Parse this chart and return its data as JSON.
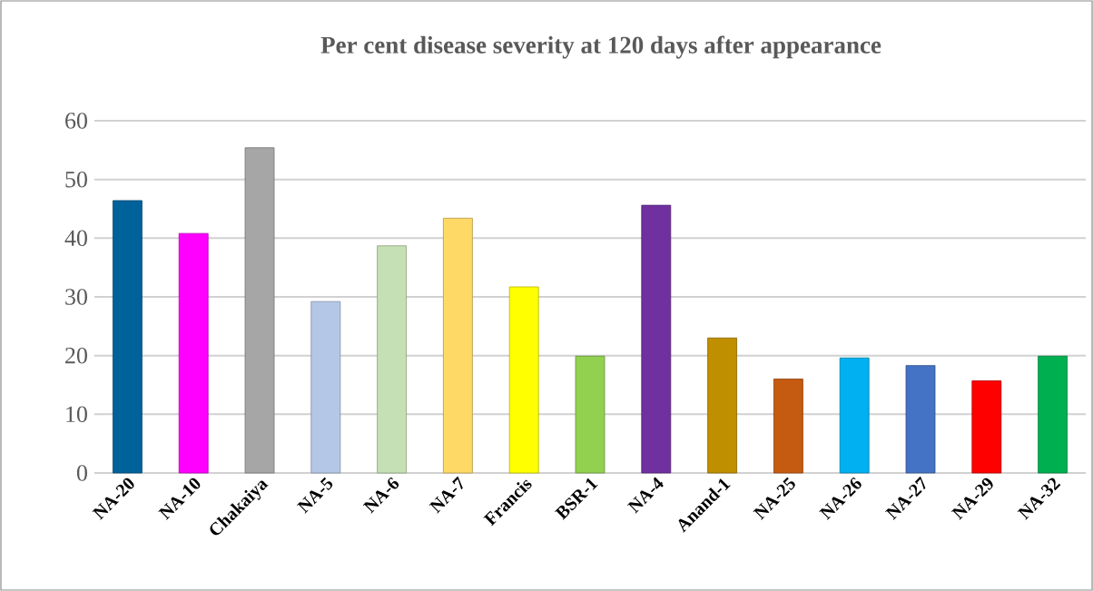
{
  "chart_data": {
    "type": "bar",
    "title": "Per cent disease severity at 120 days after appearance",
    "categories": [
      "NA-20",
      "NA-10",
      "Chakaiya",
      "NA-5",
      "NA-6",
      "NA-7",
      "Francis",
      "BSR-1",
      "NA-4",
      "Anand-1",
      "NA-25",
      "NA-26",
      "NA-27",
      "NA-29",
      "NA-32"
    ],
    "values": [
      46.4,
      40.8,
      55.4,
      29.2,
      38.7,
      43.4,
      31.7,
      19.9,
      45.6,
      23.0,
      16.0,
      19.6,
      18.3,
      15.7,
      19.9
    ],
    "colors": [
      "#00629b",
      "#ff00ff",
      "#a6a6a6",
      "#b4c7e7",
      "#c5e0b4",
      "#ffd966",
      "#ffff00",
      "#92d050",
      "#7030a0",
      "#bf8f00",
      "#c55a11",
      "#00b0f0",
      "#4472c4",
      "#ff0000",
      "#00b050"
    ],
    "ylim": [
      0,
      60
    ],
    "yticks": [
      0,
      10,
      20,
      30,
      40,
      50,
      60
    ],
    "grid": "y"
  }
}
